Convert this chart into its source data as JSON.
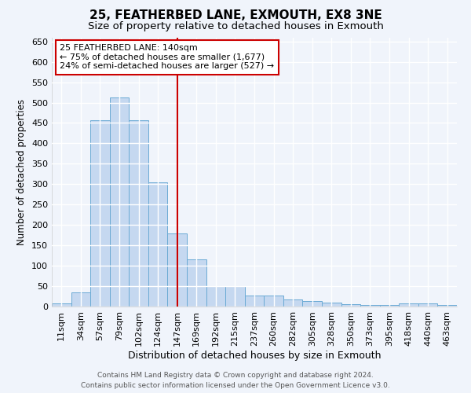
{
  "title1": "25, FEATHERBED LANE, EXMOUTH, EX8 3NE",
  "title2": "Size of property relative to detached houses in Exmouth",
  "xlabel": "Distribution of detached houses by size in Exmouth",
  "ylabel": "Number of detached properties",
  "categories": [
    "11sqm",
    "34sqm",
    "57sqm",
    "79sqm",
    "102sqm",
    "124sqm",
    "147sqm",
    "169sqm",
    "192sqm",
    "215sqm",
    "237sqm",
    "260sqm",
    "282sqm",
    "305sqm",
    "328sqm",
    "350sqm",
    "373sqm",
    "395sqm",
    "418sqm",
    "440sqm",
    "463sqm"
  ],
  "values": [
    7,
    35,
    457,
    512,
    457,
    305,
    180,
    115,
    50,
    50,
    27,
    27,
    17,
    13,
    9,
    5,
    3,
    3,
    7,
    7,
    4
  ],
  "bar_color": "#c5d8f0",
  "bar_edge_color": "#6aaad4",
  "vline_x_index": 6,
  "vline_color": "#cc0000",
  "ylim": [
    0,
    660
  ],
  "yticks": [
    0,
    50,
    100,
    150,
    200,
    250,
    300,
    350,
    400,
    450,
    500,
    550,
    600,
    650
  ],
  "annotation_title": "25 FEATHERBED LANE: 140sqm",
  "annotation_line1": "← 75% of detached houses are smaller (1,677)",
  "annotation_line2": "24% of semi-detached houses are larger (527) →",
  "annotation_box_color": "#ffffff",
  "annotation_box_edge_color": "#cc0000",
  "footer1": "Contains HM Land Registry data © Crown copyright and database right 2024.",
  "footer2": "Contains public sector information licensed under the Open Government Licence v3.0.",
  "bg_color": "#f0f4fb",
  "plot_bg_color": "#f0f4fb",
  "grid_color": "#ffffff",
  "title1_fontsize": 11,
  "title2_fontsize": 9.5,
  "xlabel_fontsize": 9,
  "ylabel_fontsize": 8.5,
  "tick_fontsize": 8,
  "footer_fontsize": 6.5
}
